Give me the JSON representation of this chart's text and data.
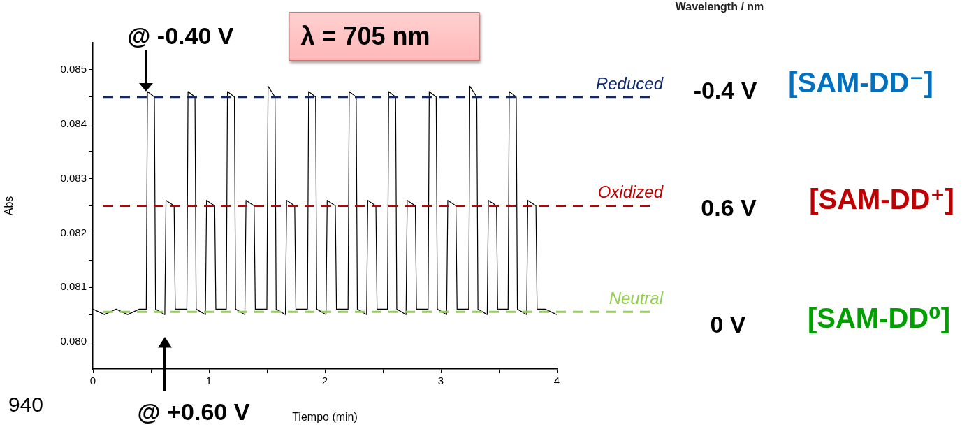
{
  "chart_data": {
    "type": "line",
    "xlabel": "Tiempo (min)",
    "ylabel": "Abs",
    "series": [
      {
        "color": "#000000",
        "x": [
          0,
          0.1,
          0.2,
          0.3,
          0.4,
          0.46,
          0.47,
          0.53,
          0.54,
          0.62,
          0.63,
          0.7,
          0.71,
          0.81,
          0.82,
          0.88,
          0.89,
          0.97,
          0.98,
          1.05,
          1.06,
          1.15,
          1.16,
          1.22,
          1.23,
          1.31,
          1.32,
          1.39,
          1.4,
          1.5,
          1.51,
          1.57,
          1.58,
          1.66,
          1.67,
          1.74,
          1.75,
          1.85,
          1.86,
          1.92,
          1.93,
          2.01,
          2.02,
          2.09,
          2.1,
          2.2,
          2.21,
          2.27,
          2.28,
          2.36,
          2.37,
          2.44,
          2.45,
          2.54,
          2.55,
          2.61,
          2.62,
          2.7,
          2.71,
          2.78,
          2.79,
          2.89,
          2.9,
          2.96,
          2.97,
          3.05,
          3.06,
          3.13,
          3.14,
          3.24,
          3.25,
          3.31,
          3.32,
          3.4,
          3.41,
          3.48,
          3.49,
          3.58,
          3.59,
          3.65,
          3.66,
          3.74,
          3.75,
          3.82,
          3.83,
          3.9,
          4.0
        ],
        "values": [
          0.0806,
          0.0805,
          0.0806,
          0.0805,
          0.0806,
          0.0806,
          0.0846,
          0.0845,
          0.0806,
          0.0805,
          0.0826,
          0.0825,
          0.0806,
          0.0806,
          0.0846,
          0.0845,
          0.0806,
          0.0805,
          0.0826,
          0.0825,
          0.0806,
          0.0806,
          0.0846,
          0.0845,
          0.0806,
          0.0805,
          0.0826,
          0.0825,
          0.0806,
          0.0806,
          0.0847,
          0.0845,
          0.0806,
          0.0805,
          0.0826,
          0.0825,
          0.0806,
          0.0806,
          0.0846,
          0.0845,
          0.0806,
          0.0805,
          0.0826,
          0.0825,
          0.0806,
          0.0806,
          0.0846,
          0.0845,
          0.0806,
          0.0805,
          0.0826,
          0.0825,
          0.0806,
          0.0806,
          0.0846,
          0.0845,
          0.0806,
          0.0805,
          0.0826,
          0.0825,
          0.0806,
          0.0806,
          0.0846,
          0.0845,
          0.0806,
          0.0805,
          0.0826,
          0.0825,
          0.0806,
          0.0806,
          0.0847,
          0.0845,
          0.0806,
          0.0805,
          0.0826,
          0.0825,
          0.0806,
          0.0806,
          0.0846,
          0.0845,
          0.0806,
          0.0805,
          0.0826,
          0.0825,
          0.0806,
          0.0806,
          0.0805
        ]
      }
    ],
    "xlim": [
      0,
      4
    ],
    "xticks": [
      0,
      {
        "value": 0.5,
        "label": null
      },
      1,
      {
        "value": 1.5,
        "label": null
      },
      2,
      {
        "value": 2.5,
        "label": null
      },
      3,
      {
        "value": 3.5,
        "label": null
      },
      4
    ],
    "ylim": [
      0.0795,
      0.0855
    ],
    "yticks": [
      {
        "value": 0.08,
        "label": "0.080"
      },
      {
        "value": 0.0805,
        "label": null
      },
      0.081,
      {
        "value": 0.0815,
        "label": null
      },
      0.082,
      {
        "value": 0.0825,
        "label": null
      },
      0.083,
      {
        "value": 0.0835,
        "label": null
      },
      0.084,
      {
        "value": 0.0845,
        "label": null
      },
      0.085
    ],
    "grid": false,
    "legend": false,
    "marker": "none",
    "line_style": "solid",
    "ref_lines": [
      {
        "axis": "y",
        "value": 0.0845,
        "label": "Reduced",
        "color": "#0d2a6b",
        "line_style": "dashed"
      },
      {
        "axis": "y",
        "value": 0.0825,
        "label": "Oxidized",
        "color": "#c00000",
        "line_style": "dashed"
      },
      {
        "axis": "y",
        "value": 0.08055,
        "label": "Neutral",
        "color": "#92d050",
        "line_style": "dashed"
      }
    ],
    "annotations": [
      {
        "text": "@ -0.40 V",
        "x": 0.46,
        "y": 0.0845
      },
      "@ +0.60 V",
      "λ = 705 nm",
      "-0.4 V",
      "[SAM-DD⁻]",
      "0.6 V",
      "[SAM-DD⁺]",
      "0 V",
      "[SAM-DD⁰]",
      "Wavelength / nm",
      "940"
    ]
  }
}
